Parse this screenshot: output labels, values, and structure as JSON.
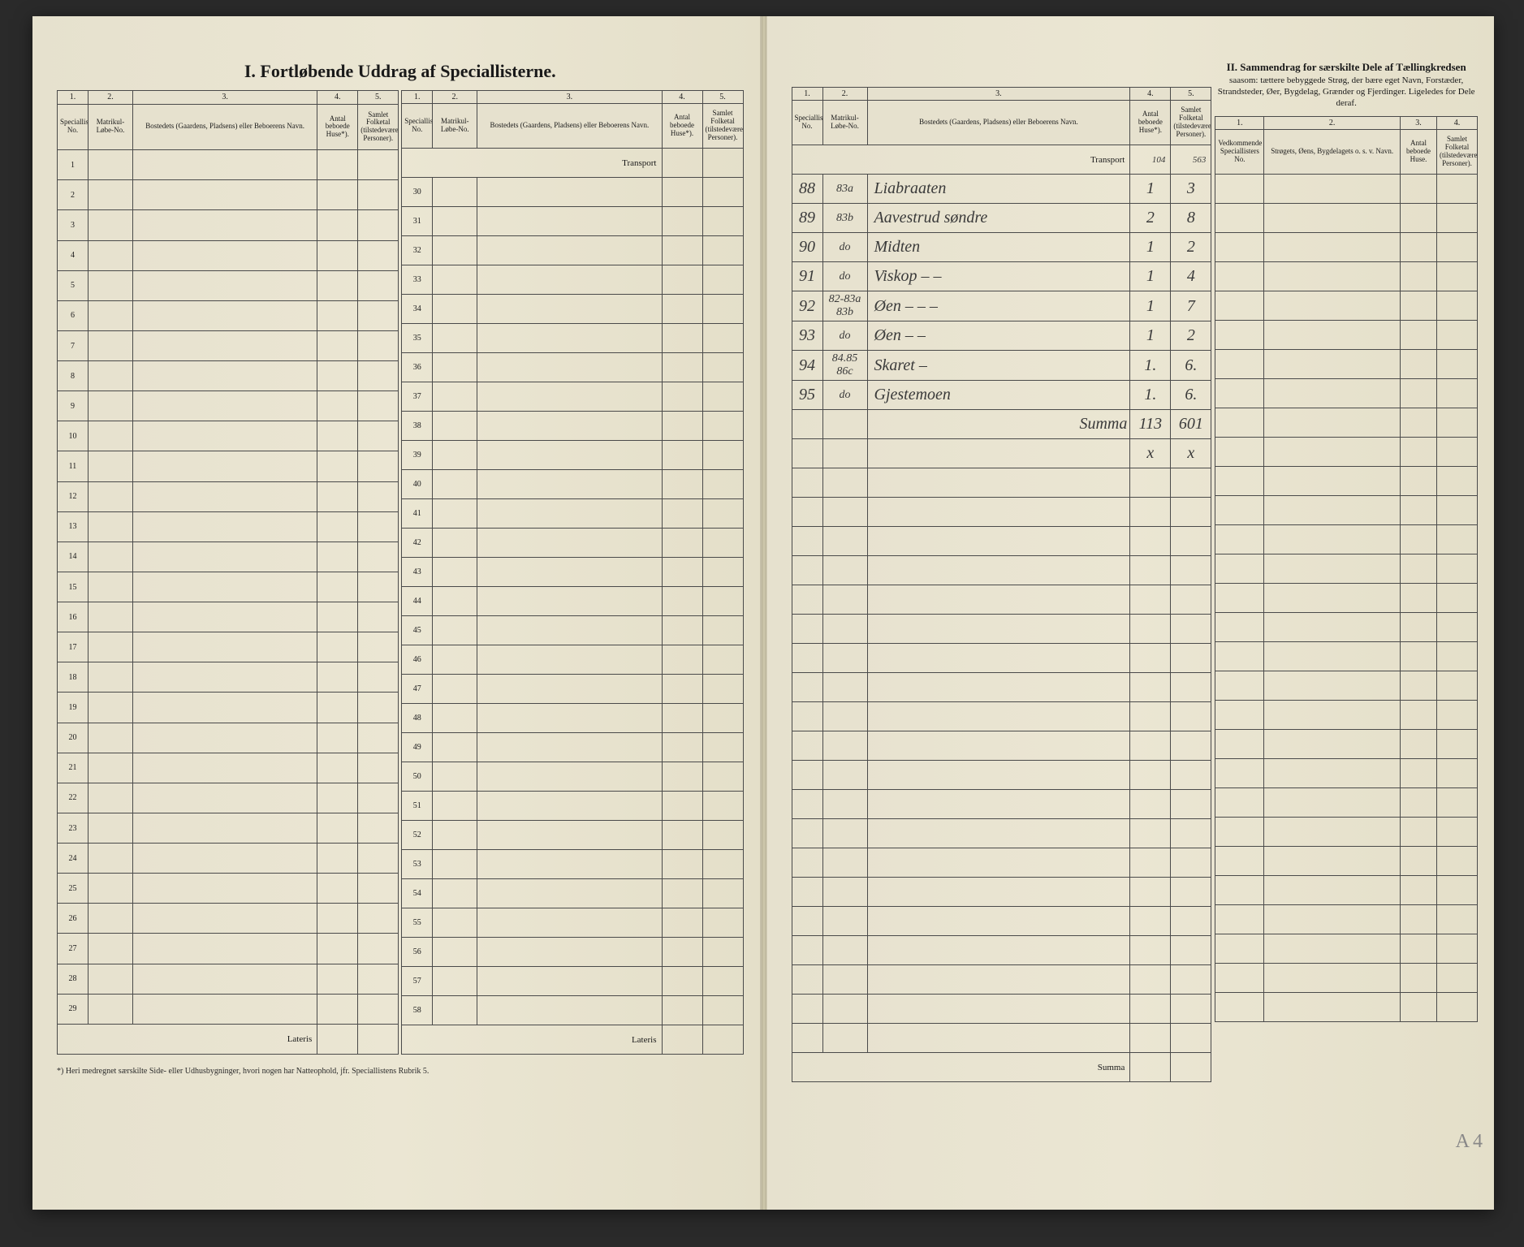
{
  "title_left": "I.  Fortløbende Uddrag af Speciallisterne.",
  "title_right": "II.  Sammendrag for særskilte Dele af Tællingkredsen",
  "title_right_sub": "saasom: tættere bebyggede Strøg, der bære eget Navn, Forstæder, Strandsteder, Øer, Bygdelag, Grænder og Fjerdinger. Ligeledes for Dele deraf.",
  "col_numbers": [
    "1.",
    "2.",
    "3.",
    "4.",
    "5."
  ],
  "headers": {
    "h1": "Speciallisternes No.",
    "h2": "Matrikul-Løbe-No.",
    "h3": "Bostedets (Gaardens, Pladsens) eller Beboerens Navn.",
    "h4": "Antal beboede Huse*).",
    "h5": "Samlet Folketal (tilstedeværende Personer).",
    "hr1": "Vedkommende Speciallisters No.",
    "hr2": "Strøgets, Øens, Bygdelagets o. s. v. Navn.",
    "hr3": "Antal beboede Huse.",
    "hr4": "Samlet Folketal (tilstedeværende Personer)."
  },
  "transport": "Transport",
  "lateris": "Lateris",
  "summa": "Summa",
  "footnote": "*) Heri medregnet særskilte Side- eller Udhusbygninger, hvori nogen har Natteophold, jfr. Speciallistens Rubrik 5.",
  "left_rows": [
    1,
    2,
    3,
    4,
    5,
    6,
    7,
    8,
    9,
    10,
    11,
    12,
    13,
    14,
    15,
    16,
    17,
    18,
    19,
    20,
    21,
    22,
    23,
    24,
    25,
    26,
    27,
    28,
    29
  ],
  "mid_rows": [
    30,
    31,
    32,
    33,
    34,
    35,
    36,
    37,
    38,
    39,
    40,
    41,
    42,
    43,
    44,
    45,
    46,
    47,
    48,
    49,
    50,
    51,
    52,
    53,
    54,
    55,
    56,
    57,
    58
  ],
  "transport_vals": {
    "c4": "104",
    "c5": "563"
  },
  "entries": [
    {
      "no": "88",
      "mat": "83a",
      "name": "Liabraaten",
      "huse": "1",
      "folke": "3"
    },
    {
      "no": "89",
      "mat": "83b",
      "name": "Aavestrud søndre",
      "huse": "2",
      "folke": "8"
    },
    {
      "no": "90",
      "mat": "do",
      "name": "Midten",
      "huse": "1",
      "folke": "2"
    },
    {
      "no": "91",
      "mat": "do",
      "name": "Viskop   –   –",
      "huse": "1",
      "folke": "4"
    },
    {
      "no": "92",
      "mat": "82-83a 83b",
      "name": "Øen   –   –   –",
      "huse": "1",
      "folke": "7"
    },
    {
      "no": "93",
      "mat": "do",
      "name": "Øen   –   –",
      "huse": "1",
      "folke": "2"
    },
    {
      "no": "94",
      "mat": "84.85 86c",
      "name": "Skaret   –",
      "huse": "1.",
      "folke": "6."
    },
    {
      "no": "95",
      "mat": "do",
      "name": "Gjestemoen",
      "huse": "1.",
      "folke": "6."
    }
  ],
  "summa_row": {
    "label": "Summa",
    "c4": "113",
    "c5": "601"
  },
  "x_row": {
    "c4": "x",
    "c5": "x"
  },
  "right_blank_rows": 20,
  "summary_blank_rows": 29,
  "corner_label": "A4",
  "colors": {
    "paper": "#e8e3d0",
    "ink": "#1a1a1a",
    "hand": "#3a3a3a",
    "border": "#4a4a4a",
    "bg": "#2a2a2a"
  }
}
